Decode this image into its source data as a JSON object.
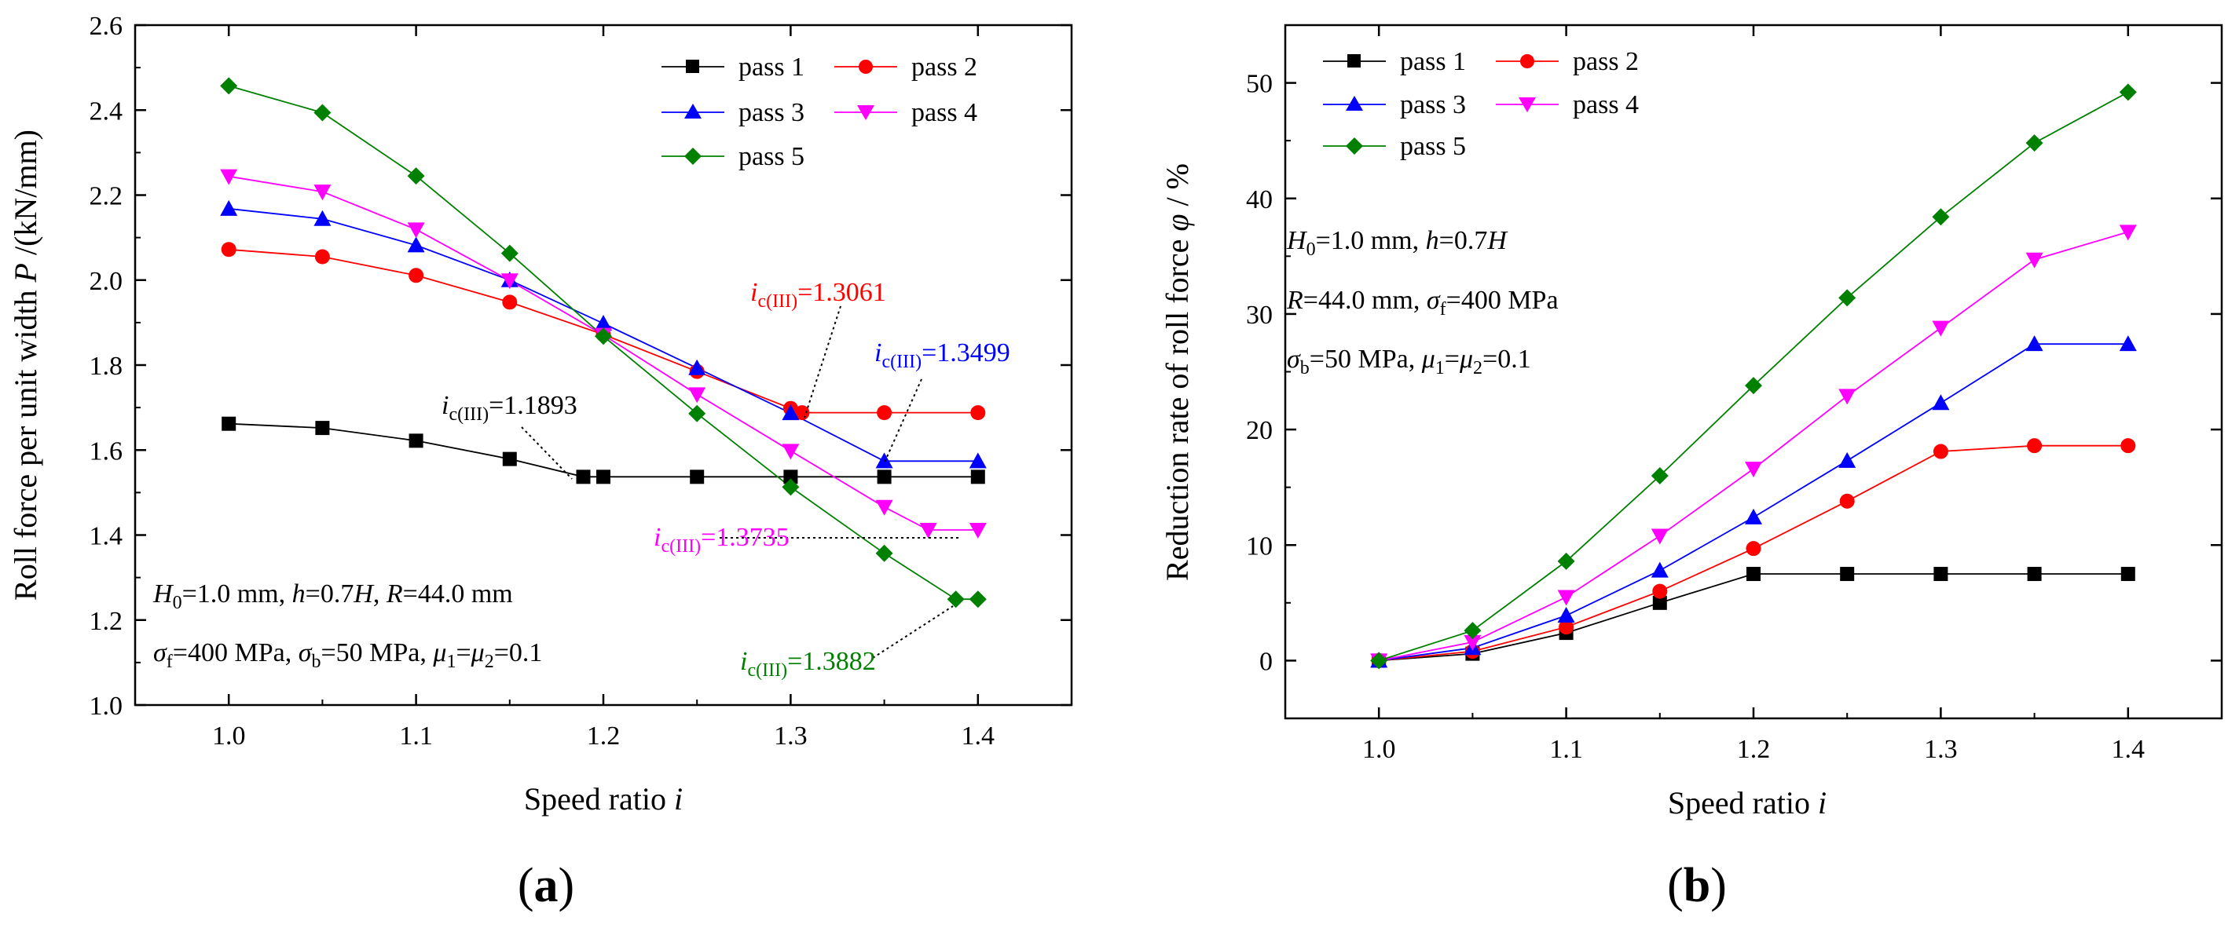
{
  "chart_data": [
    {
      "type": "line",
      "panel_label": "(a)",
      "panel_label_text": "a",
      "xlabel": "Speed ratio i",
      "xlabel_text": "Speed ratio ",
      "xlabel_var": "i",
      "ylabel": "Roll force per unit width P /(kN/mm)",
      "ylabel_text": "Roll force per unit width ",
      "ylabel_var": "P",
      "ylabel_unit": " /(kN/mm)",
      "xlim": [
        0.95,
        1.45
      ],
      "ylim": [
        1.0,
        2.6
      ],
      "xticks": [
        "1.0",
        "1.1",
        "1.2",
        "1.3",
        "1.4"
      ],
      "xtick_values": [
        1.0,
        1.1,
        1.2,
        1.3,
        1.4
      ],
      "yticks": [
        "1.0",
        "1.2",
        "1.4",
        "1.6",
        "1.8",
        "2.0",
        "2.2",
        "2.4",
        "2.6"
      ],
      "ytick_values": [
        1.0,
        1.2,
        1.4,
        1.6,
        1.8,
        2.0,
        2.2,
        2.4,
        2.6
      ],
      "legend_position": "top-right",
      "series": [
        {
          "name": "pass 1",
          "color": "#000000",
          "marker": "square",
          "x": [
            1.0,
            1.05,
            1.1,
            1.15,
            1.1893,
            1.2,
            1.25,
            1.3,
            1.35,
            1.4
          ],
          "y": [
            1.662,
            1.652,
            1.622,
            1.579,
            1.537,
            1.537,
            1.537,
            1.537,
            1.537,
            1.537
          ]
        },
        {
          "name": "pass 2",
          "color": "#ff0000",
          "marker": "circle",
          "x": [
            1.0,
            1.05,
            1.1,
            1.15,
            1.2,
            1.25,
            1.3,
            1.3061,
            1.35,
            1.4
          ],
          "y": [
            2.072,
            2.055,
            2.011,
            1.948,
            1.872,
            1.785,
            1.698,
            1.688,
            1.688,
            1.688
          ]
        },
        {
          "name": "pass 3",
          "color": "#0000ff",
          "marker": "triangle-up",
          "x": [
            1.0,
            1.05,
            1.1,
            1.15,
            1.2,
            1.25,
            1.3,
            1.35,
            1.4
          ],
          "y": [
            2.168,
            2.144,
            2.082,
            2.0,
            1.898,
            1.793,
            1.687,
            1.574,
            1.574
          ]
        },
        {
          "name": "pass 4",
          "color": "#ff00ff",
          "marker": "triangle-down",
          "x": [
            1.0,
            1.05,
            1.1,
            1.15,
            1.2,
            1.25,
            1.3,
            1.35,
            1.3735,
            1.4
          ],
          "y": [
            2.244,
            2.208,
            2.119,
            1.999,
            1.871,
            1.731,
            1.598,
            1.466,
            1.412,
            1.412
          ]
        },
        {
          "name": "pass 5",
          "color": "#008000",
          "marker": "diamond",
          "x": [
            1.0,
            1.05,
            1.1,
            1.15,
            1.2,
            1.25,
            1.3,
            1.35,
            1.3882,
            1.4
          ],
          "y": [
            2.457,
            2.394,
            2.245,
            2.063,
            1.868,
            1.686,
            1.513,
            1.357,
            1.249,
            1.249
          ]
        }
      ],
      "conditions": {
        "line1": "H0=1.0 mm, h=0.7H, R=44.0 mm",
        "line2": "σf=400 MPa, σb=50 MPa, μ1=μ2=0.1"
      },
      "annotations": [
        {
          "text": "ic(III)=1.1893",
          "value": "=1.1893",
          "color": "#000000"
        },
        {
          "text": "ic(III)=1.3061",
          "value": "=1.3061",
          "color": "#ff0000"
        },
        {
          "text": "ic(III)=1.3499",
          "value": "=1.3499",
          "color": "#0000ff"
        },
        {
          "text": "ic(III)=1.3735",
          "value": "=1.3735",
          "color": "#ff00ff"
        },
        {
          "text": "ic(III)=1.3882",
          "value": "=1.3882",
          "color": "#008000"
        }
      ]
    },
    {
      "type": "line",
      "panel_label": "(b)",
      "panel_label_text": "b",
      "xlabel": "Speed ratio i",
      "xlabel_text": "Speed ratio ",
      "xlabel_var": "i",
      "ylabel": "Reduction rate of roll force φ / %",
      "ylabel_text": "Reduction rate of roll force ",
      "ylabel_var": "φ",
      "ylabel_unit": " / %",
      "xlim": [
        0.95,
        1.45
      ],
      "ylim": [
        -5,
        55
      ],
      "xticks": [
        "1.0",
        "1.1",
        "1.2",
        "1.3",
        "1.4"
      ],
      "xtick_values": [
        1.0,
        1.1,
        1.2,
        1.3,
        1.4
      ],
      "yticks": [
        "0",
        "10",
        "20",
        "30",
        "40",
        "50"
      ],
      "ytick_values": [
        0,
        10,
        20,
        30,
        40,
        50
      ],
      "legend_position": "top-left",
      "series": [
        {
          "name": "pass 1",
          "color": "#000000",
          "marker": "square",
          "x": [
            1.0,
            1.05,
            1.1,
            1.15,
            1.2,
            1.25,
            1.3,
            1.35,
            1.4
          ],
          "y": [
            0,
            0.6,
            2.4,
            5.0,
            7.5,
            7.5,
            7.5,
            7.5,
            7.5
          ]
        },
        {
          "name": "pass 2",
          "color": "#ff0000",
          "marker": "circle",
          "x": [
            1.0,
            1.05,
            1.1,
            1.15,
            1.2,
            1.25,
            1.3,
            1.35,
            1.4
          ],
          "y": [
            0,
            0.8,
            2.9,
            6.0,
            9.7,
            13.8,
            18.1,
            18.6,
            18.6
          ]
        },
        {
          "name": "pass 3",
          "color": "#0000ff",
          "marker": "triangle-up",
          "x": [
            1.0,
            1.05,
            1.1,
            1.15,
            1.2,
            1.25,
            1.3,
            1.35,
            1.4
          ],
          "y": [
            0,
            1.1,
            3.9,
            7.8,
            12.4,
            17.3,
            22.3,
            27.4,
            27.4
          ]
        },
        {
          "name": "pass 4",
          "color": "#ff00ff",
          "marker": "triangle-down",
          "x": [
            1.0,
            1.05,
            1.1,
            1.15,
            1.2,
            1.25,
            1.3,
            1.35,
            1.4
          ],
          "y": [
            0,
            1.6,
            5.5,
            10.8,
            16.6,
            22.9,
            28.8,
            34.7,
            37.1
          ]
        },
        {
          "name": "pass 5",
          "color": "#008000",
          "marker": "diamond",
          "x": [
            1.0,
            1.05,
            1.1,
            1.15,
            1.2,
            1.25,
            1.3,
            1.35,
            1.4
          ],
          "y": [
            0,
            2.6,
            8.6,
            16.0,
            23.8,
            31.4,
            38.4,
            44.8,
            49.2
          ]
        }
      ],
      "conditions": {
        "line1": "H0=1.0 mm, h=0.7H",
        "line2": "R=44.0 mm, σf=400 MPa",
        "line3": "σb=50 MPa, μ1=μ2=0.1"
      }
    }
  ]
}
